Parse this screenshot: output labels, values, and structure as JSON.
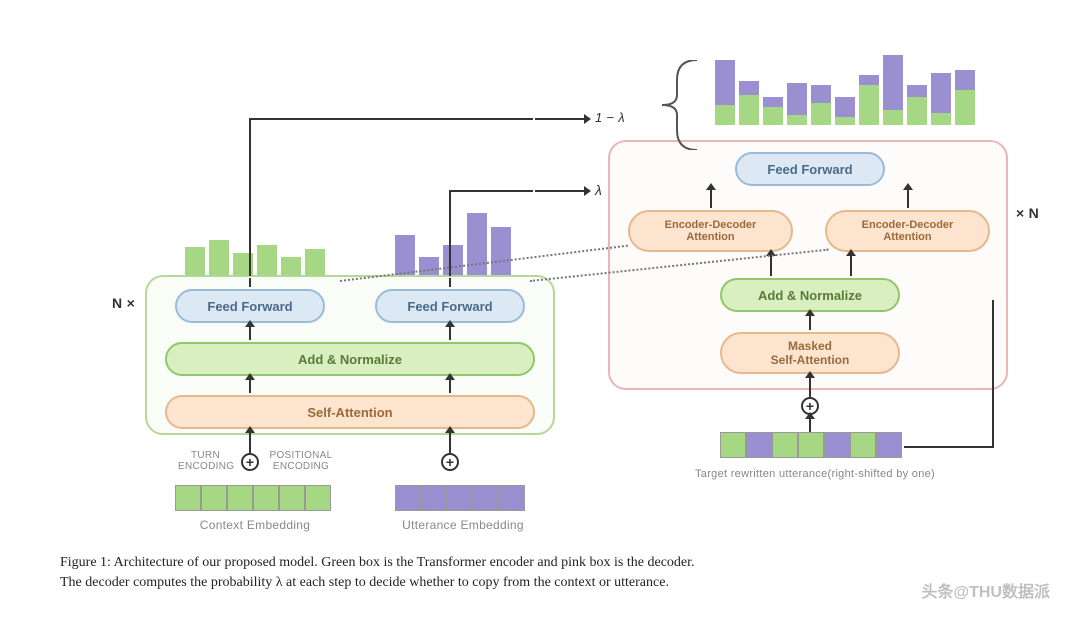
{
  "colors": {
    "green_fill": "#d9efc0",
    "green_border": "#8fc76a",
    "peach_fill": "#fde4cf",
    "peach_border": "#e6b98d",
    "blue_fill": "#dce9f5",
    "blue_border": "#9abbd8",
    "encoder_box": "#b7d79a",
    "decoder_box": "#e8b6b6",
    "bar_green": "#a6d785",
    "bar_purple": "#9a8fd1",
    "emb_green": "#a6d785",
    "emb_purple": "#9a8fd1"
  },
  "encoder": {
    "n_label": "N ×",
    "ff1": "Feed Forward",
    "ff2": "Feed Forward",
    "addnorm": "Add & Normalize",
    "selfattn": "Self-Attention",
    "turn_enc": "TURN\nENCODING",
    "pos_enc": "POSITIONAL\nENCODING",
    "ctx_emb": "Context Embedding",
    "utt_emb": "Utterance Embedding"
  },
  "decoder": {
    "n_label": "× N",
    "ff": "Feed Forward",
    "enc_dec1": "Encoder-Decoder\nAttention",
    "enc_dec2": "Encoder-Decoder\nAttention",
    "addnorm": "Add & Normalize",
    "masked": "Masked\nSelf-Attention",
    "target_lbl": "Target rewritten utterance(right-shifted by one)"
  },
  "lambda": {
    "one_minus": "1 − λ",
    "lam": "λ"
  },
  "bars": {
    "green": [
      28,
      35,
      22,
      30,
      18,
      26
    ],
    "purple": [
      40,
      18,
      30,
      62,
      48
    ],
    "stacked": [
      {
        "g": 20,
        "p": 45
      },
      {
        "g": 30,
        "p": 14
      },
      {
        "g": 18,
        "p": 10
      },
      {
        "g": 10,
        "p": 32
      },
      {
        "g": 22,
        "p": 18
      },
      {
        "g": 8,
        "p": 20
      },
      {
        "g": 40,
        "p": 10
      },
      {
        "g": 15,
        "p": 55
      },
      {
        "g": 28,
        "p": 12
      },
      {
        "g": 12,
        "p": 40
      },
      {
        "g": 35,
        "p": 20
      }
    ]
  },
  "caption": {
    "l1": "Figure 1: Architecture of our proposed model. Green box is the Transformer encoder and pink box is the decoder.",
    "l2": "The decoder computes the probability λ at each step to decide whether to copy from the context or utterance."
  },
  "watermark": "头条@THU数据派"
}
